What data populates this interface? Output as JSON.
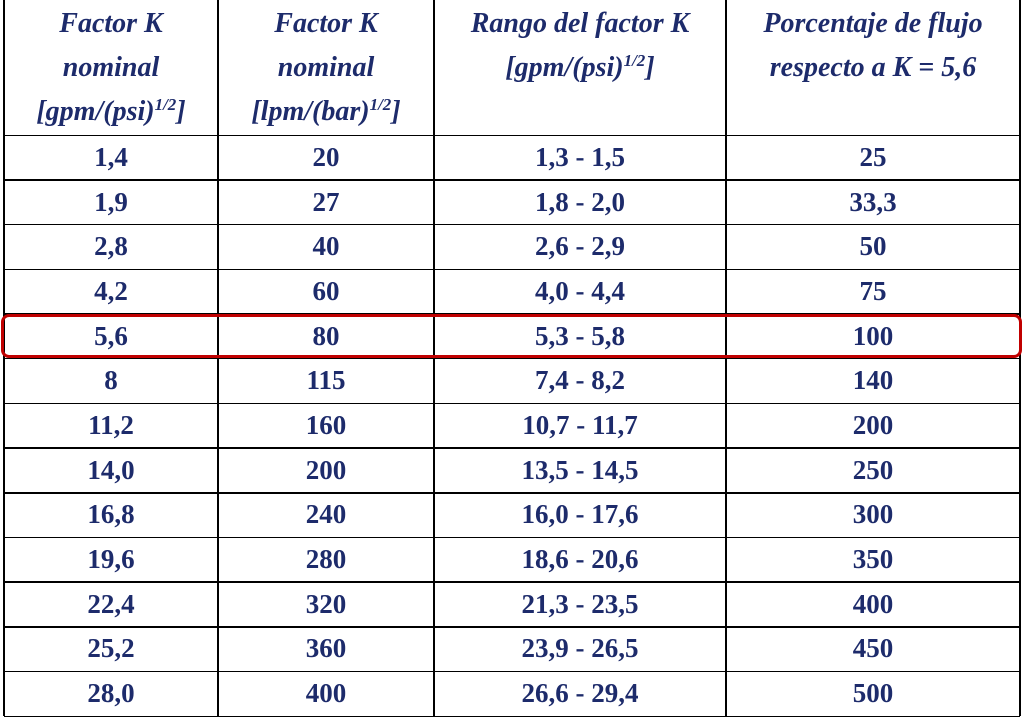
{
  "table": {
    "columns": [
      {
        "lines": [
          "Factor K",
          "nominal"
        ],
        "unit": "[gpm/(psi)",
        "sup": "1/2",
        "unit_end": "]"
      },
      {
        "lines": [
          "Factor K",
          "nominal"
        ],
        "unit": "[lpm/(bar)",
        "sup": "1/2",
        "unit_end": "]"
      },
      {
        "lines": [
          "Rango del factor K"
        ],
        "unit": "[gpm/(psi)",
        "sup": "1/2",
        "unit_end": "]"
      },
      {
        "lines": [
          "Porcentaje de flujo",
          "respecto a K = 5,6"
        ]
      }
    ],
    "rows": [
      [
        "1,4",
        "20",
        "1,3 - 1,5",
        "25"
      ],
      [
        "1,9",
        "27",
        "1,8 - 2,0",
        "33,3"
      ],
      [
        "2,8",
        "40",
        "2,6 - 2,9",
        "50"
      ],
      [
        "4,2",
        "60",
        "4,0 - 4,4",
        "75"
      ],
      [
        "5,6",
        "80",
        "5,3 - 5,8",
        "100"
      ],
      [
        "8",
        "115",
        "7,4 - 8,2",
        "140"
      ],
      [
        "11,2",
        "160",
        "10,7 - 11,7",
        "200"
      ],
      [
        "14,0",
        "200",
        "13,5 - 14,5",
        "250"
      ],
      [
        "16,8",
        "240",
        "16,0 - 17,6",
        "300"
      ],
      [
        "19,6",
        "280",
        "18,6 - 20,6",
        "350"
      ],
      [
        "22,4",
        "320",
        "21,3 - 23,5",
        "400"
      ],
      [
        "25,2",
        "360",
        "23,9 - 26,5",
        "450"
      ],
      [
        "28,0",
        "400",
        "26,6 - 29,4",
        "500"
      ]
    ],
    "highlighted_row": 4,
    "highlight_color": "#c00000",
    "text_color": "#1d2b6b"
  }
}
